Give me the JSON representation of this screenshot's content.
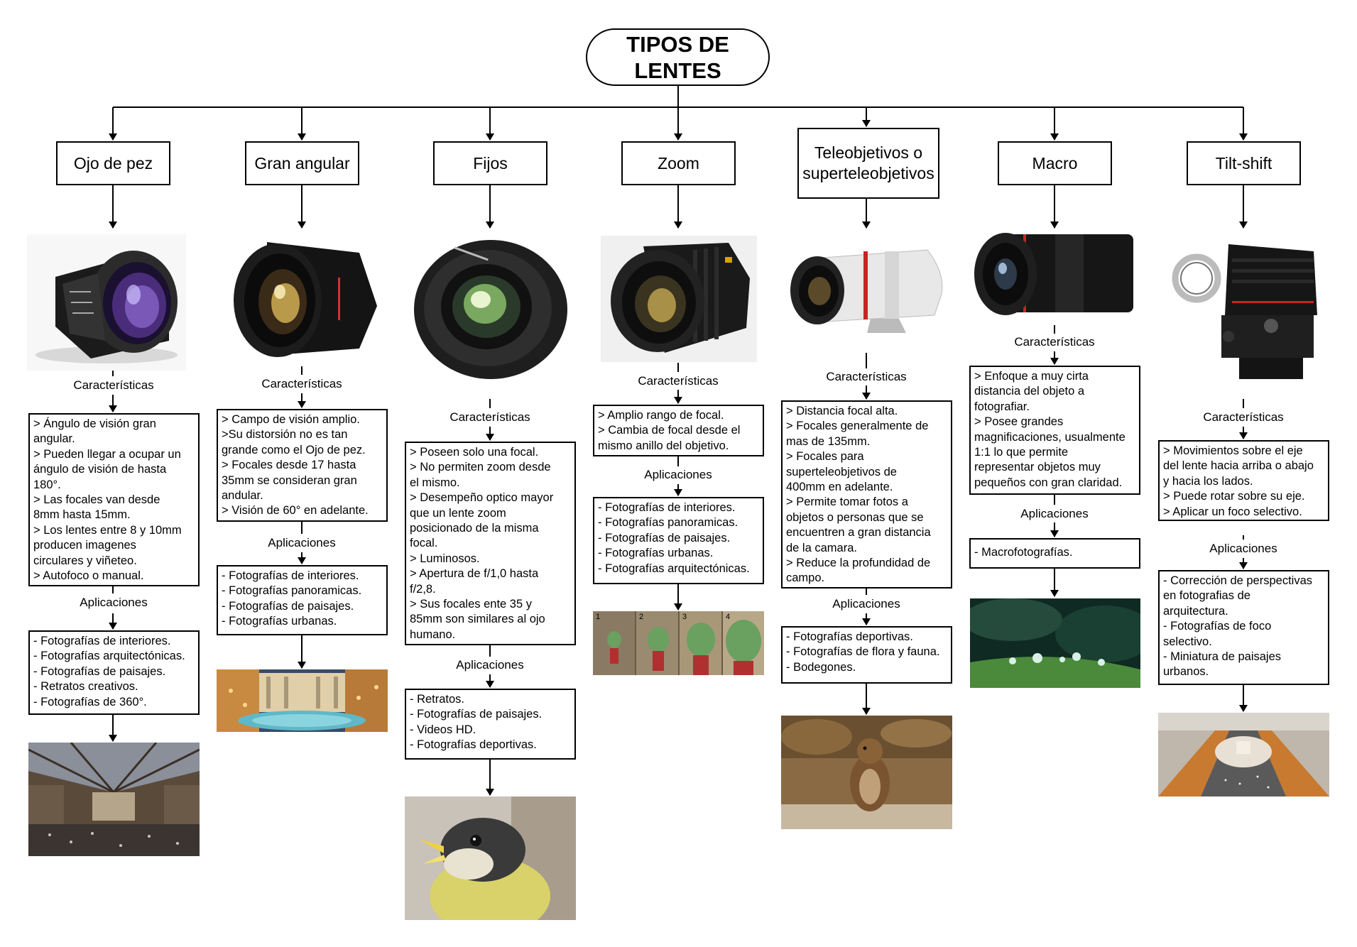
{
  "title": [
    "TIPOS DE",
    "LENTES"
  ],
  "columns": [
    {
      "name": [
        "Ojo de pez"
      ],
      "caracteristicas_label": "Características",
      "caracteristicas": [
        "> Ángulo de visión gran",
        "angular.",
        "> Pueden llegar a ocupar un",
        "ángulo de visión de hasta",
        "180°.",
        "> Las focales van desde",
        "8mm hasta 15mm.",
        "> Los lentes entre 8 y 10mm",
        "producen imagenes",
        "circulares y viñeteo.",
        "> Autofoco o manual."
      ],
      "aplicaciones_label": "Aplicaciones",
      "aplicaciones": [
        "- Fotografías de interiores.",
        "- Fotografías arquitectónicas.",
        "- Fotografías de paisajes.",
        "- Retratos creativos.",
        "- Fotografías de 360°."
      ]
    },
    {
      "name": [
        "Gran angular"
      ],
      "caracteristicas_label": "Características",
      "caracteristicas": [
        "> Campo de visión amplio.",
        ">Su distorsión no es tan",
        "grande como el Ojo de pez.",
        "> Focales desde 17 hasta",
        "35mm se consideran gran",
        "andular.",
        "> Visión de 60° en adelante."
      ],
      "aplicaciones_label": "Aplicaciones",
      "aplicaciones": [
        "- Fotografías de interiores.",
        "- Fotografías panoramicas.",
        "- Fotografías de paisajes.",
        "- Fotografías urbanas."
      ]
    },
    {
      "name": [
        "Fijos"
      ],
      "caracteristicas_label": "Características",
      "caracteristicas": [
        "> Poseen solo una focal.",
        "> No permiten zoom desde",
        "el mismo.",
        "> Desempeño optico mayor",
        "que un lente zoom",
        "posicionado de la misma",
        "focal.",
        "> Luminosos.",
        "> Apertura de f/1,0 hasta",
        "f/2,8.",
        "> Sus focales ente 35 y",
        "85mm son similares al ojo",
        "humano."
      ],
      "aplicaciones_label": "Aplicaciones",
      "aplicaciones": [
        "- Retratos.",
        "- Fotografías de paisajes.",
        "- Videos HD.",
        "- Fotografías deportivas."
      ]
    },
    {
      "name": [
        "Zoom"
      ],
      "caracteristicas_label": "Características",
      "caracteristicas": [
        "> Amplio rango de focal.",
        "> Cambia de focal desde el",
        "mismo anillo del objetivo."
      ],
      "aplicaciones_label": "Aplicaciones",
      "aplicaciones": [
        "- Fotografías de interiores.",
        "- Fotografías panoramicas.",
        "- Fotografías de paisajes.",
        "- Fotografías urbanas.",
        "- Fotografías arquitectónicas."
      ],
      "photo_numbers": [
        "1",
        "2",
        "3",
        "4"
      ]
    },
    {
      "name": [
        "Teleobjetivos o",
        "superteleobjetivos"
      ],
      "caracteristicas_label": "Características",
      "caracteristicas": [
        "> Distancia focal alta.",
        "> Focales generalmente de",
        "mas de 135mm.",
        "> Focales para",
        "superteleobjetivos de",
        "400mm en adelante.",
        "> Permite tomar fotos a",
        "objetos o personas que se",
        "encuentren a gran distancia",
        "de la camara.",
        "> Reduce la profundidad de",
        "campo."
      ],
      "aplicaciones_label": "Aplicaciones",
      "aplicaciones": [
        "- Fotografías deportivas.",
        "- Fotografías de flora y fauna.",
        "- Bodegones."
      ]
    },
    {
      "name": [
        "Macro"
      ],
      "caracteristicas_label": "Características",
      "caracteristicas": [
        "> Enfoque a muy cirta",
        "distancia del objeto a",
        "fotografiar.",
        "> Posee grandes",
        "magnificaciones, usualmente",
        "1:1 lo que permite",
        "representar objetos muy",
        "pequeños con gran claridad."
      ],
      "aplicaciones_label": "Aplicaciones",
      "aplicaciones": [
        "- Macrofotografías."
      ]
    },
    {
      "name": [
        "Tilt-shift"
      ],
      "caracteristicas_label": "Características",
      "caracteristicas": [
        "> Movimientos sobre el eje",
        "del lente hacia arriba o abajo",
        "y hacia los lados.",
        "> Puede rotar sobre su eje.",
        "> Aplicar un foco selectivo."
      ],
      "aplicaciones_label": "Aplicaciones",
      "aplicaciones": [
        "- Corrección de perspectivas",
        "en fotografias de",
        "arquitectura.",
        "- Fotografías de foco",
        "selectivo.",
        "- Miniatura de paisajes",
        "urbanos."
      ]
    }
  ],
  "images": {
    "lens_photos": [
      "fisheye-lens",
      "wide-angle-lens",
      "prime-lens",
      "zoom-lens",
      "telephoto-lens",
      "macro-lens",
      "tilt-shift-lens"
    ],
    "example_photos": [
      "museum-hall",
      "trevi-fountain",
      "bird-chick",
      "figurines-zoom-sequence",
      "prairie-dog",
      "water-drops-grass",
      "aerial-avenue"
    ]
  }
}
